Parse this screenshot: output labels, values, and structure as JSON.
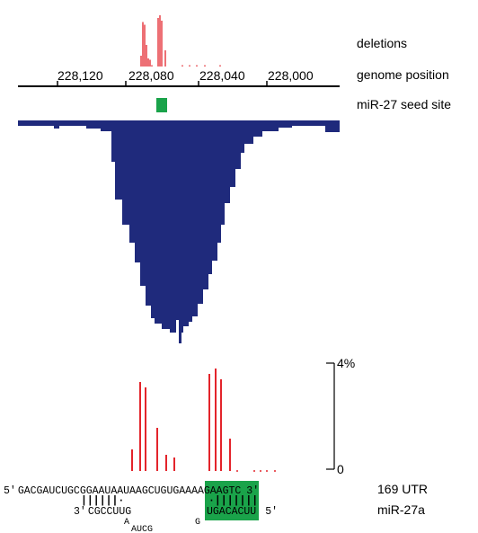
{
  "colors": {
    "deletion": "#e3242b",
    "coverage": "#1f2a7c",
    "seed": "#1aa34a",
    "axis": "#000000"
  },
  "labels": {
    "deletions": "deletions",
    "genome_position": "genome position",
    "seed_site": "miR-27 seed site",
    "utr": "169 UTR",
    "mirna": "miR-27a",
    "scale_top": "4%",
    "scale_bottom": "0"
  },
  "axis": {
    "ticks": [
      "228,120",
      "228,080",
      "228,040",
      "228,000"
    ],
    "tick_values": [
      228120,
      228080,
      228040,
      228000
    ]
  },
  "utr_sequence": {
    "prefix": "5′",
    "left": "GACGAUCUGCGGAAUAAUAAG",
    "seed": "CUGUGA",
    "right": "AAAGAAGTC",
    "suffix": "3′"
  },
  "mirna_sequence": {
    "prefix": "3′",
    "left": "CGCCUUG",
    "right": "UGACACUU",
    "suffix": "5′",
    "loop_a": "A",
    "loop_aucg": "AUCG",
    "loop_g": "G",
    "pairing_left": "||||||·",
    "pairing_right": "·|||||||"
  },
  "chart_data": {
    "type": "bar",
    "title": "",
    "deletion_frequency_percent": [
      0.8,
      3.3,
      3.1,
      1.6,
      0.6,
      0.5,
      0,
      3.6,
      3.8,
      3.4,
      1.2,
      0.3,
      0.1,
      0.1,
      0.1,
      0.1
    ],
    "ylim": [
      0,
      4
    ],
    "ylabel_ticks": [
      "0",
      "4%"
    ]
  }
}
